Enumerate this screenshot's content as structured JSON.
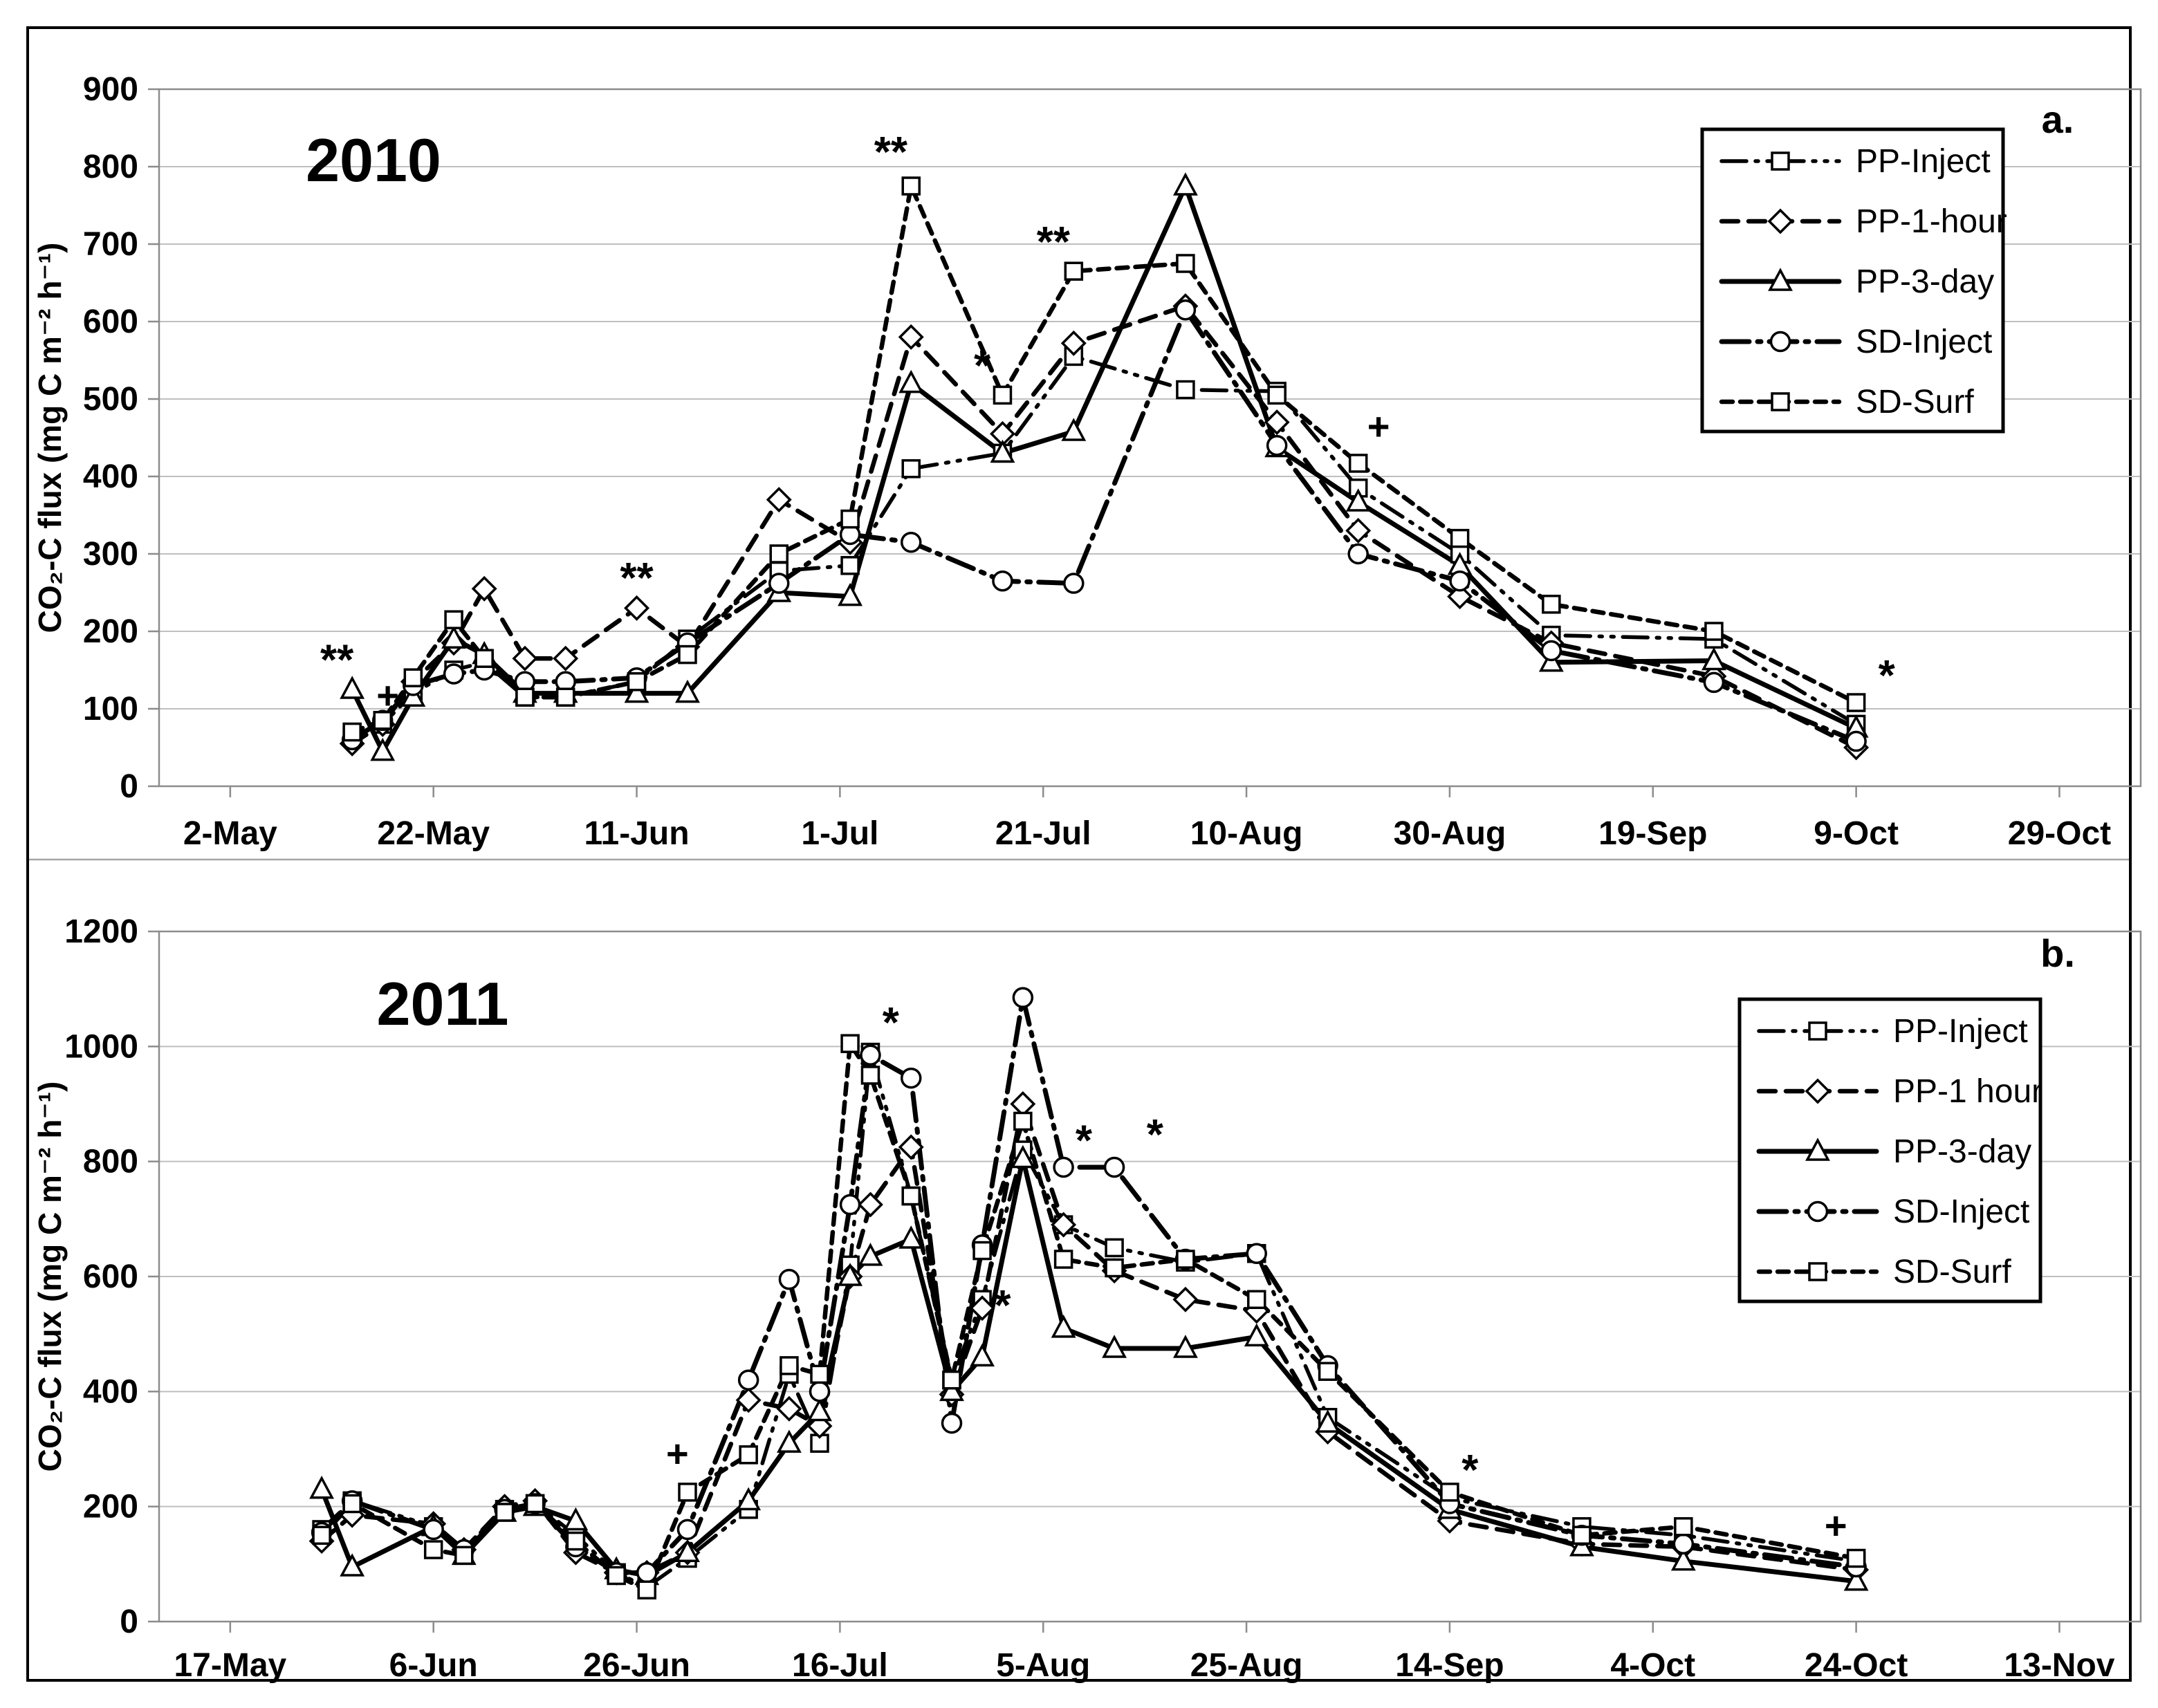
{
  "figure": {
    "background": "#ffffff",
    "outer_border_color": "#000000",
    "divider_color": "#a6a6a6",
    "grid_color": "#bfbfbf",
    "axis_color": "#8c8c8c",
    "ink_color": "#000000"
  },
  "chart_data": [
    {
      "type": "line",
      "title": "2010",
      "panel_label": "a.",
      "ylabel": "CO₂-C flux (mg C m⁻² h⁻¹)",
      "ylim": [
        0,
        900
      ],
      "ytick_step": 100,
      "grid": true,
      "legend_position": "top-right",
      "x_tick_labels": [
        "2-May",
        "22-May",
        "11-Jun",
        "1-Jul",
        "21-Jul",
        "10-Aug",
        "30-Aug",
        "19-Sep",
        "9-Oct",
        "29-Oct"
      ],
      "x_tick_days": [
        0,
        20,
        40,
        60,
        80,
        100,
        120,
        140,
        160,
        180
      ],
      "x_domain": [
        -7,
        188
      ],
      "x_days": [
        12,
        15,
        18,
        22,
        25,
        29,
        33,
        40,
        45,
        54,
        61,
        67,
        76,
        83,
        94,
        103,
        111,
        121,
        130,
        146,
        160
      ],
      "series": [
        {
          "name": "PP-Inject",
          "marker": "square",
          "dash": "dashdotdot",
          "width": 5.5,
          "values": [
            65,
            80,
            120,
            150,
            160,
            115,
            115,
            135,
            190,
            278,
            285,
            410,
            430,
            555,
            512,
            510,
            385,
            300,
            195,
            190,
            80
          ]
        },
        {
          "name": "PP-1-hour",
          "marker": "diamond",
          "dash": "dash",
          "width": 6.5,
          "values": [
            55,
            80,
            135,
            185,
            255,
            165,
            165,
            230,
            180,
            370,
            315,
            580,
            455,
            572,
            620,
            470,
            330,
            245,
            185,
            142,
            50
          ]
        },
        {
          "name": "PP-3-day",
          "marker": "triangle",
          "dash": "solid",
          "width": 7,
          "values": [
            125,
            45,
            115,
            190,
            170,
            120,
            120,
            120,
            120,
            250,
            245,
            520,
            430,
            458,
            775,
            437,
            367,
            285,
            160,
            162,
            75
          ]
        },
        {
          "name": "SD-Inject",
          "marker": "circle",
          "dash": "longdashdot",
          "width": 7,
          "values": [
            60,
            85,
            130,
            145,
            150,
            135,
            135,
            140,
            185,
            262,
            325,
            315,
            265,
            262,
            615,
            440,
            300,
            265,
            175,
            134,
            58
          ]
        },
        {
          "name": "SD-Surf",
          "marker": "square",
          "dash": "shortdash",
          "width": 6.5,
          "values": [
            70,
            85,
            140,
            215,
            165,
            115,
            115,
            135,
            170,
            300,
            345,
            775,
            505,
            665,
            675,
            505,
            417,
            320,
            235,
            200,
            108
          ]
        }
      ],
      "annotations": [
        {
          "d": 10.5,
          "v": 162,
          "t": "**"
        },
        {
          "d": 15.5,
          "v": 118,
          "t": "+"
        },
        {
          "d": 40,
          "v": 268,
          "t": "**"
        },
        {
          "d": 65,
          "v": 818,
          "t": "**"
        },
        {
          "d": 74,
          "v": 542,
          "t": "*"
        },
        {
          "d": 81,
          "v": 702,
          "t": "**"
        },
        {
          "d": 113,
          "v": 465,
          "t": "+"
        },
        {
          "d": 163,
          "v": 142,
          "t": "*"
        }
      ]
    },
    {
      "type": "line",
      "title": "2011",
      "panel_label": "b.",
      "ylabel": "CO₂-C flux (mg C m⁻² h⁻¹)",
      "ylim": [
        0,
        1200
      ],
      "ytick_step": 200,
      "grid": true,
      "legend_position": "top-right",
      "x_tick_labels": [
        "17-May",
        "6-Jun",
        "26-Jun",
        "16-Jul",
        "5-Aug",
        "25-Aug",
        "14-Sep",
        "4-Oct",
        "24-Oct",
        "13-Nov"
      ],
      "x_tick_days": [
        0,
        20,
        40,
        60,
        80,
        100,
        120,
        140,
        160,
        180
      ],
      "x_domain": [
        -7,
        188
      ],
      "x_days": [
        9,
        12,
        20,
        23,
        27,
        30,
        34,
        38,
        41,
        45,
        51,
        55,
        58,
        61,
        63,
        67,
        71,
        74,
        78,
        82,
        87,
        94,
        101,
        108,
        120,
        133,
        143,
        160
      ],
      "series": [
        {
          "name": "PP-Inject",
          "marker": "square",
          "dash": "dashdotdot",
          "width": 5.5,
          "values": [
            160,
            210,
            165,
            120,
            195,
            205,
            150,
            85,
            60,
            110,
            195,
            430,
            310,
            620,
            990,
            740,
            420,
            560,
            820,
            690,
            650,
            625,
            640,
            355,
            215,
            165,
            150,
            105
          ]
        },
        {
          "name": "PP-1 hour",
          "marker": "diamond",
          "dash": "dash",
          "width": 6.5,
          "values": [
            140,
            185,
            170,
            125,
            200,
            210,
            120,
            85,
            85,
            120,
            385,
            370,
            340,
            600,
            725,
            825,
            395,
            545,
            900,
            690,
            610,
            560,
            540,
            330,
            175,
            135,
            130,
            90
          ]
        },
        {
          "name": "PP-3-day",
          "marker": "triangle",
          "dash": "solid",
          "width": 7,
          "values": [
            230,
            95,
            165,
            115,
            190,
            200,
            175,
            90,
            80,
            120,
            210,
            310,
            365,
            600,
            635,
            665,
            400,
            460,
            805,
            510,
            475,
            475,
            495,
            345,
            195,
            130,
            105,
            70
          ]
        },
        {
          "name": "SD-Inject",
          "marker": "circle",
          "dash": "longdashdot",
          "width": 7,
          "values": [
            155,
            210,
            160,
            125,
            195,
            205,
            130,
            85,
            85,
            160,
            420,
            595,
            400,
            725,
            985,
            945,
            345,
            655,
            1085,
            790,
            790,
            630,
            640,
            445,
            205,
            150,
            135,
            95
          ]
        },
        {
          "name": "SD-Surf",
          "marker": "square",
          "dash": "shortdash",
          "width": 6.5,
          "values": [
            150,
            205,
            125,
            115,
            190,
            205,
            140,
            80,
            55,
            225,
            290,
            445,
            430,
            1005,
            950,
            740,
            420,
            645,
            870,
            630,
            615,
            630,
            560,
            435,
            225,
            150,
            165,
            110
          ]
        }
      ],
      "annotations": [
        {
          "d": 44,
          "v": 293,
          "t": "+"
        },
        {
          "d": 65,
          "v": 1040,
          "t": "*"
        },
        {
          "d": 76,
          "v": 548,
          "t": "*"
        },
        {
          "d": 84,
          "v": 835,
          "t": "*"
        },
        {
          "d": 91,
          "v": 845,
          "t": "*"
        },
        {
          "d": 122,
          "v": 262,
          "t": "*"
        },
        {
          "d": 158,
          "v": 168,
          "t": "+"
        }
      ]
    }
  ]
}
